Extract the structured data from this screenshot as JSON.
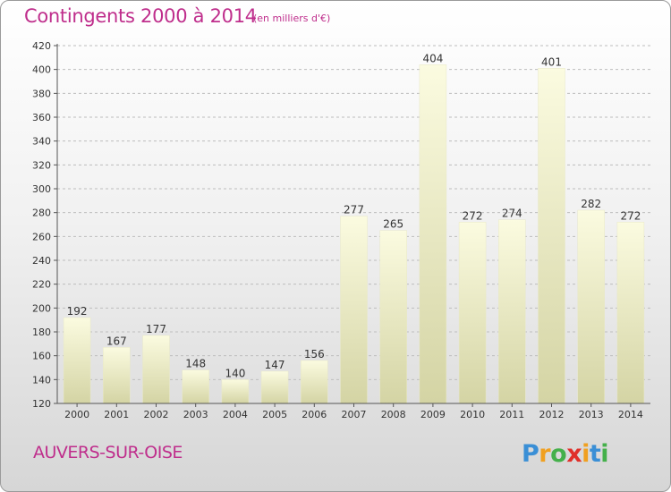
{
  "header": {
    "title": "Contingents 2000 à 2014",
    "subtitle": "(en milliers d'€)"
  },
  "footer": {
    "commune": "AUVERS-SUR-OISE",
    "logo_text": "Proxiti"
  },
  "colors": {
    "title": "#bf2e8c",
    "bar_top": "#fbfbe0",
    "bar_bottom": "#d4d4a4",
    "grid": "#bdbdbd"
  },
  "chart_data": {
    "type": "bar",
    "title": "Contingents 2000 à 2014",
    "subtitle": "(en milliers d'€)",
    "xlabel": "",
    "ylabel": "",
    "categories": [
      "2000",
      "2001",
      "2002",
      "2003",
      "2004",
      "2005",
      "2006",
      "2007",
      "2008",
      "2009",
      "2010",
      "2011",
      "2012",
      "2013",
      "2014"
    ],
    "values": [
      192,
      167,
      177,
      148,
      140,
      147,
      156,
      277,
      265,
      404,
      272,
      274,
      401,
      282,
      272
    ],
    "ylim": [
      120,
      420
    ],
    "yticks": [
      120,
      140,
      160,
      180,
      200,
      220,
      240,
      260,
      280,
      300,
      320,
      340,
      360,
      380,
      400,
      420
    ],
    "grid": true,
    "data_labels": true
  }
}
